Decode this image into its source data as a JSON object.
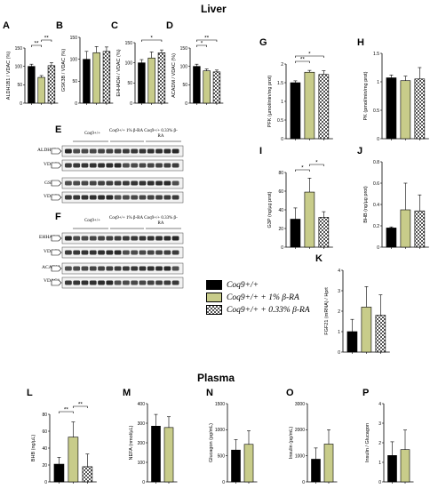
{
  "sections": {
    "liver": "Liver",
    "plasma": "Plasma"
  },
  "colors": {
    "ctrl": "#000000",
    "ra1": "#c8cc8a",
    "ra033": "checker"
  },
  "legend": [
    {
      "label": "Coq9+/+"
    },
    {
      "label": "Coq9+/+ + 1% β-RA"
    },
    {
      "label": "Coq9+/+ + 0.33% β-RA"
    }
  ],
  "blots": {
    "E": {
      "groups": [
        "Coq9+/+",
        "Coq9+/+ 1% β-RA",
        "Coq9+/+ 0.33% β-RA"
      ],
      "rows": [
        "ALDH1B1",
        "VDAC1",
        "GSK3β",
        "VDAC1"
      ]
    },
    "F": {
      "groups": [
        "Coq9+/+",
        "Coq9+/+ 1% β-RA",
        "Coq9+/+ 0.33% β-RA"
      ],
      "rows": [
        "EHHADH",
        "VDAC1",
        "ACADM",
        "VDAC1"
      ]
    }
  },
  "chart_data": [
    {
      "id": "A",
      "type": "bar",
      "ylabel": "ALDH1B1 / VDAC (%)",
      "ylim": [
        0,
        150
      ],
      "ticks": [
        0,
        50,
        100,
        150
      ],
      "values": [
        100,
        70,
        102
      ],
      "errors": [
        6,
        5,
        8
      ],
      "sig": [
        {
          "from": 0,
          "to": 1,
          "label": "**"
        },
        {
          "from": 1,
          "to": 2,
          "label": "**"
        }
      ]
    },
    {
      "id": "B",
      "type": "bar",
      "ylabel": "GSK3B / VDAC (%)",
      "ylim": [
        0,
        150
      ],
      "ticks": [
        0,
        50,
        100,
        150
      ],
      "values": [
        100,
        115,
        118
      ],
      "errors": [
        18,
        14,
        10
      ],
      "sig": []
    },
    {
      "id": "C",
      "type": "bar",
      "ylabel": "EHHADH / VDAC (%)",
      "ylim": [
        0,
        150
      ],
      "ticks": [
        0,
        50,
        100,
        150
      ],
      "values": [
        100,
        112,
        125
      ],
      "errors": [
        8,
        15,
        7
      ],
      "sig": [
        {
          "from": 0,
          "to": 2,
          "label": "*"
        }
      ]
    },
    {
      "id": "D",
      "type": "bar",
      "ylabel": "ACADM / VDAC (%)",
      "ylim": [
        0,
        150
      ],
      "ticks": [
        0,
        50,
        100,
        150
      ],
      "values": [
        100,
        88,
        85
      ],
      "errors": [
        6,
        5,
        5
      ],
      "sig": [
        {
          "from": 0,
          "to": 1,
          "label": "*"
        },
        {
          "from": 0,
          "to": 2,
          "label": "**"
        }
      ]
    },
    {
      "id": "G",
      "type": "bar",
      "ylabel": "PFK (µmol/min/mg prot)",
      "ylim": [
        0,
        2.0
      ],
      "ticks": [
        0,
        0.5,
        1.0,
        1.5,
        2.0
      ],
      "values": [
        1.5,
        1.78,
        1.72
      ],
      "errors": [
        0.05,
        0.05,
        0.1
      ],
      "sig": [
        {
          "from": 0,
          "to": 1,
          "label": "**"
        },
        {
          "from": 0,
          "to": 2,
          "label": "*"
        }
      ]
    },
    {
      "id": "H",
      "type": "bar",
      "ylabel": "PK (pmol/min/mg prot)",
      "ylim": [
        0,
        1.5
      ],
      "ticks": [
        0,
        0.5,
        1.0,
        1.5
      ],
      "values": [
        1.07,
        1.02,
        1.05
      ],
      "errors": [
        0.05,
        0.08,
        0.2
      ],
      "sig": []
    },
    {
      "id": "I",
      "type": "bar",
      "ylabel": "G3P (ng/µg prot)",
      "ylim": [
        0,
        80
      ],
      "ticks": [
        0,
        20,
        40,
        60,
        80
      ],
      "values": [
        30,
        59,
        32
      ],
      "errors": [
        12,
        15,
        6
      ],
      "sig": [
        {
          "from": 0,
          "to": 1,
          "label": "*"
        },
        {
          "from": 1,
          "to": 2,
          "label": "*"
        }
      ]
    },
    {
      "id": "J",
      "type": "bar",
      "ylabel": "BHB (ng/µg prot)",
      "ylim": [
        0,
        0.8
      ],
      "ticks": [
        0,
        0.2,
        0.4,
        0.6,
        0.8
      ],
      "values": [
        0.18,
        0.35,
        0.34
      ],
      "errors": [
        0.01,
        0.25,
        0.15
      ],
      "sig": []
    },
    {
      "id": "K",
      "type": "bar",
      "ylabel": "FGF21 (mRNA) / Hprt",
      "ylim": [
        0,
        4
      ],
      "ticks": [
        0,
        1,
        2,
        3,
        4
      ],
      "values": [
        1.0,
        2.2,
        1.8
      ],
      "errors": [
        0.6,
        1.0,
        1.0
      ],
      "sig": []
    },
    {
      "id": "L",
      "type": "bar",
      "ylabel": "BHB (ng/µL)",
      "ylim": [
        0,
        80
      ],
      "ticks": [
        0,
        20,
        40,
        60,
        80
      ],
      "values": [
        21,
        53,
        18
      ],
      "errors": [
        8,
        18,
        15
      ],
      "sig": [
        {
          "from": 0,
          "to": 1,
          "label": "**"
        },
        {
          "from": 1,
          "to": 2,
          "label": "**"
        }
      ]
    },
    {
      "id": "M",
      "type": "bar",
      "ylabel": "NEFA (nmol/µL)",
      "ylim": [
        0,
        400
      ],
      "ticks": [
        0,
        100,
        200,
        300,
        400
      ],
      "values": [
        285,
        278
      ],
      "errors": [
        60,
        55
      ],
      "sig": []
    },
    {
      "id": "N",
      "type": "bar",
      "ylabel": "Glucagon (pg/mL)",
      "ylim": [
        0,
        1500
      ],
      "ticks": [
        0,
        500,
        1000,
        1500
      ],
      "values": [
        610,
        720
      ],
      "errors": [
        200,
        260
      ],
      "sig": []
    },
    {
      "id": "O",
      "type": "bar",
      "ylabel": "Insulin (pg/mL)",
      "ylim": [
        0,
        3000
      ],
      "ticks": [
        0,
        1000,
        2000,
        3000
      ],
      "values": [
        870,
        1450
      ],
      "errors": [
        430,
        550
      ],
      "sig": []
    },
    {
      "id": "P",
      "type": "bar",
      "ylabel": "Insulin / Glucagon",
      "ylim": [
        0,
        4
      ],
      "ticks": [
        0,
        1,
        2,
        3,
        4
      ],
      "values": [
        1.35,
        1.65
      ],
      "errors": [
        0.7,
        1.0
      ],
      "sig": []
    }
  ]
}
